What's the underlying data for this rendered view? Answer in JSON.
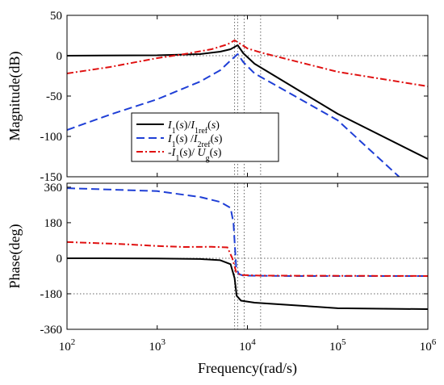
{
  "chart_data": {
    "type": "line",
    "title": "",
    "xlabel": "Frequency(rad/s)",
    "x_scale": "log",
    "xlim": [
      100,
      1000000
    ],
    "x_ticks": [
      {
        "value": 100,
        "base": "10",
        "exp": "2"
      },
      {
        "value": 1000,
        "base": "10",
        "exp": "3"
      },
      {
        "value": 10000,
        "base": "10",
        "exp": "4"
      },
      {
        "value": 100000,
        "base": "10",
        "exp": "5"
      },
      {
        "value": 1000000,
        "base": "10",
        "exp": "6"
      }
    ],
    "grid": false,
    "reference_lines": {
      "magnitude_y": 0,
      "phase_y": [
        0,
        -180
      ],
      "x_markers": [
        7200,
        7800,
        9200,
        14000
      ]
    },
    "panels": {
      "magnitude": {
        "ylabel": "Magnitude(dB)",
        "ylim": [
          -150,
          50
        ],
        "y_ticks": [
          "50",
          "0",
          "-50",
          "-100",
          "-150"
        ],
        "series": [
          {
            "legend_html": "<tspan font-style='italic'>I</tspan><tspan baseline-shift='sub' font-size='10'>1</tspan>(<tspan font-style='italic'>s</tspan>)/<tspan font-style='italic'>I</tspan><tspan baseline-shift='sub' font-size='10'>1ref</tspan>(<tspan font-style='italic'>s</tspan>)",
            "color": "#000000",
            "dash": "",
            "points": [
              [
                100,
                0
              ],
              [
                1000,
                0.5
              ],
              [
                3000,
                2
              ],
              [
                5000,
                5
              ],
              [
                6500,
                8
              ],
              [
                7800,
                13
              ],
              [
                9000,
                3
              ],
              [
                12000,
                -10
              ],
              [
                100000,
                -72
              ],
              [
                1000000,
                -128
              ]
            ]
          },
          {
            "legend_html": "<tspan font-style='italic'>I</tspan><tspan baseline-shift='sub' font-size='10'>1</tspan>(<tspan font-style='italic'>s</tspan>) /<tspan font-style='italic'>I</tspan><tspan baseline-shift='sub' font-size='10'>2ref</tspan>(<tspan font-style='italic'>s</tspan>)",
            "color": "#1f3fd6",
            "dash": "10 5",
            "points": [
              [
                100,
                -92
              ],
              [
                300,
                -73
              ],
              [
                1000,
                -54
              ],
              [
                3000,
                -32
              ],
              [
                5000,
                -18
              ],
              [
                6500,
                -6
              ],
              [
                7800,
                2
              ],
              [
                9000,
                -8
              ],
              [
                12000,
                -22
              ],
              [
                30000,
                -47
              ],
              [
                100000,
                -80
              ],
              [
                480000,
                -150
              ]
            ]
          },
          {
            "legend_html": "-<tspan font-style='italic'>I</tspan><tspan baseline-shift='sub' font-size='10'>1</tspan>(<tspan font-style='italic'>s</tspan>)/ <tspan font-style='italic'>U</tspan><tspan baseline-shift='sub' font-size='10'>g</tspan>(<tspan font-style='italic'>s</tspan>)",
            "color": "#e01010",
            "dash": "8 3 2 3",
            "points": [
              [
                100,
                -22
              ],
              [
                300,
                -14
              ],
              [
                1000,
                -3
              ],
              [
                2000,
                2
              ],
              [
                4000,
                8
              ],
              [
                6000,
                14
              ],
              [
                7200,
                19
              ],
              [
                8000,
                16
              ],
              [
                10000,
                9
              ],
              [
                14000,
                4
              ],
              [
                100000,
                -20
              ],
              [
                1000000,
                -38
              ]
            ]
          }
        ]
      },
      "phase": {
        "ylabel": "Phase(deg)",
        "ylim": [
          -360,
          380
        ],
        "y_ticks": [
          "360",
          "180",
          "0",
          "-180",
          "-360"
        ],
        "series": [
          {
            "color": "#000000",
            "dash": "",
            "points": [
              [
                100,
                0
              ],
              [
                1000,
                -1
              ],
              [
                3000,
                -4
              ],
              [
                5000,
                -10
              ],
              [
                6500,
                -30
              ],
              [
                7200,
                -100
              ],
              [
                7600,
                -190
              ],
              [
                8500,
                -215
              ],
              [
                12000,
                -225
              ],
              [
                100000,
                -253
              ],
              [
                1000000,
                -258
              ]
            ]
          },
          {
            "color": "#1f3fd6",
            "dash": "10 5",
            "points": [
              [
                100,
                355
              ],
              [
                1000,
                340
              ],
              [
                3000,
                310
              ],
              [
                5000,
                285
              ],
              [
                6500,
                255
              ],
              [
                7000,
                180
              ],
              [
                7500,
                -45
              ],
              [
                8000,
                -80
              ],
              [
                9000,
                -88
              ],
              [
                30000,
                -90
              ],
              [
                1000000,
                -90
              ]
            ]
          },
          {
            "color": "#e01010",
            "dash": "8 3 2 3",
            "points": [
              [
                100,
                82
              ],
              [
                400,
                72
              ],
              [
                1000,
                62
              ],
              [
                2000,
                57
              ],
              [
                4000,
                58
              ],
              [
                6000,
                55
              ],
              [
                6800,
                0
              ],
              [
                7500,
                -70
              ],
              [
                8500,
                -85
              ],
              [
                14000,
                -88
              ],
              [
                1000000,
                -90
              ]
            ]
          }
        ]
      }
    }
  }
}
